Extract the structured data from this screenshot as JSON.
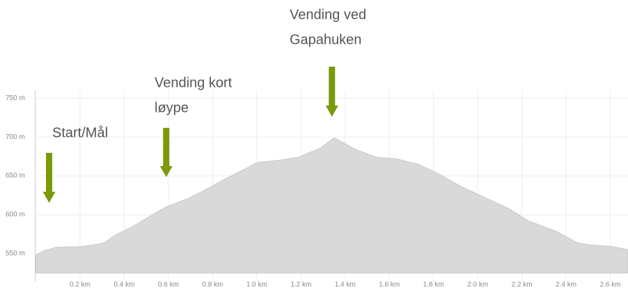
{
  "chart_data": {
    "type": "area",
    "x": [
      0,
      0.04,
      0.09,
      0.2,
      0.28,
      0.31,
      0.36,
      0.44,
      0.51,
      0.59,
      0.69,
      0.78,
      0.85,
      0.94,
      1.0,
      1.1,
      1.19,
      1.29,
      1.35,
      1.44,
      1.54,
      1.63,
      1.73,
      1.82,
      1.92,
      2.04,
      2.14,
      2.23,
      2.36,
      2.45,
      2.51,
      2.61,
      2.68
    ],
    "values": [
      548,
      554,
      558,
      559,
      562,
      564,
      574,
      585,
      597,
      610,
      621,
      634,
      645,
      658,
      667,
      670,
      674,
      686,
      699,
      685,
      674,
      672,
      665,
      653,
      637,
      621,
      608,
      592,
      578,
      564,
      561,
      559,
      555
    ],
    "color": "#d9d9d9",
    "xlim": [
      0,
      2.68
    ],
    "ylim": [
      525,
      760
    ],
    "xticks": [
      {
        "value": 0.2,
        "label": "0.2 km"
      },
      {
        "value": 0.4,
        "label": "0.4 km"
      },
      {
        "value": 0.6,
        "label": "0.6 km"
      },
      {
        "value": 0.8,
        "label": "0.8 km"
      },
      {
        "value": 1.0,
        "label": "1.0 km"
      },
      {
        "value": 1.2,
        "label": "1.2 km"
      },
      {
        "value": 1.4,
        "label": "1.4 km"
      },
      {
        "value": 1.6,
        "label": "1.6 km"
      },
      {
        "value": 1.8,
        "label": "1.8 km"
      },
      {
        "value": 2.0,
        "label": "2.0 km"
      },
      {
        "value": 2.2,
        "label": "2.2 km"
      },
      {
        "value": 2.4,
        "label": "2.4 km"
      },
      {
        "value": 2.6,
        "label": "2.6 km"
      }
    ],
    "yticks": [
      {
        "value": 550,
        "label": "550 m"
      },
      {
        "value": 600,
        "label": "600 m"
      },
      {
        "value": 650,
        "label": "650 m"
      },
      {
        "value": 700,
        "label": "700 m"
      },
      {
        "value": 750,
        "label": "750 m"
      }
    ],
    "grid": true,
    "annotations": [
      {
        "lines": [
          "Start/Mål"
        ],
        "x": 0.06
      },
      {
        "lines": [
          "Vending kort",
          "løype"
        ],
        "x": 0.59
      },
      {
        "lines": [
          "Vending ved",
          "Gapahuken"
        ],
        "x": 1.34
      }
    ],
    "arrow_color": "#7a9a0a"
  }
}
